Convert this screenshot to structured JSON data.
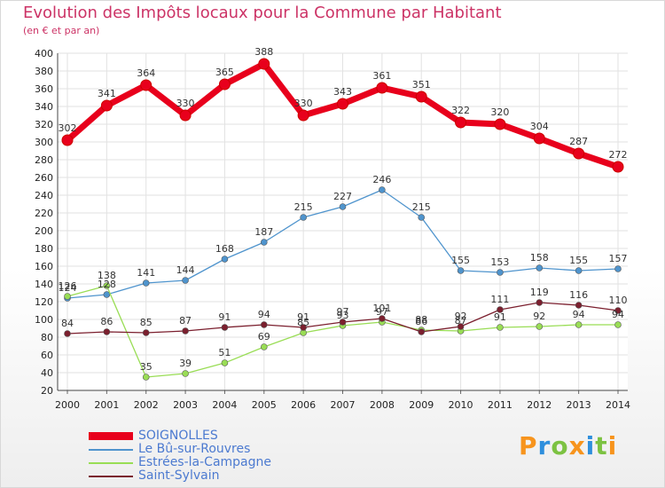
{
  "chart_data": {
    "type": "line",
    "title": "Evolution des Impôts locaux pour la Commune par Habitant",
    "subtitle": "(en € et par an)",
    "xlabel": "",
    "ylabel": "",
    "ylim": [
      20,
      400
    ],
    "y_ticks": [
      20,
      40,
      60,
      80,
      100,
      120,
      140,
      160,
      180,
      200,
      220,
      240,
      260,
      280,
      300,
      320,
      340,
      360,
      380,
      400
    ],
    "x": [
      "2000",
      "2001",
      "2002",
      "2003",
      "2004",
      "2005",
      "2006",
      "2007",
      "2008",
      "2009",
      "2010",
      "2011",
      "2012",
      "2013",
      "2014"
    ],
    "grid": true,
    "series": [
      {
        "name": "SOIGNOLLES",
        "color": "#e8001c",
        "values": [
          302,
          341,
          364,
          330,
          365,
          388,
          330,
          343,
          361,
          351,
          322,
          320,
          304,
          287,
          272
        ]
      },
      {
        "name": "Le Bû-sur-Rouvres",
        "color": "#4f94cd",
        "values": [
          124,
          128,
          141,
          144,
          168,
          187,
          215,
          227,
          246,
          215,
          155,
          153,
          158,
          155,
          157
        ]
      },
      {
        "name": "Estrées-la-Campagne",
        "color": "#99dd55",
        "values": [
          126,
          138,
          35,
          39,
          51,
          69,
          85,
          93,
          97,
          88,
          87,
          91,
          92,
          94,
          94
        ]
      },
      {
        "name": "Saint-Sylvain",
        "color": "#7b1f2e",
        "values": [
          84,
          86,
          85,
          87,
          91,
          94,
          91,
          97,
          101,
          86,
          92,
          111,
          119,
          116,
          110
        ]
      }
    ]
  },
  "legend": {
    "items": [
      {
        "label": "SOIGNOLLES",
        "color": "#e8001c"
      },
      {
        "label": "Le Bû-sur-Rouvres",
        "color": "#4f94cd"
      },
      {
        "label": "Estrées-la-Campagne",
        "color": "#99dd55"
      },
      {
        "label": "Saint-Sylvain",
        "color": "#7b1f2e"
      }
    ]
  },
  "brand": {
    "letters": [
      {
        "ch": "P",
        "color": "#f7941d"
      },
      {
        "ch": "r",
        "color": "#2f8fdd"
      },
      {
        "ch": "o",
        "color": "#7cc242"
      },
      {
        "ch": "x",
        "color": "#f7941d"
      },
      {
        "ch": "i",
        "color": "#2f8fdd"
      },
      {
        "ch": "t",
        "color": "#7cc242"
      },
      {
        "ch": "i",
        "color": "#f7941d"
      }
    ]
  }
}
